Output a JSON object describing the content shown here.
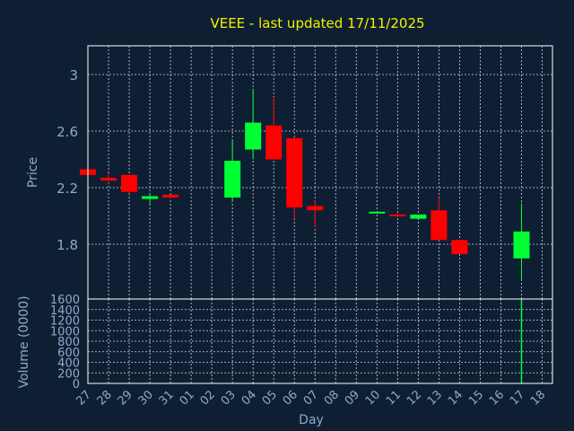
{
  "chart_data": [
    {
      "type": "candlestick",
      "title": "VEEE - last updated 17/11/2025",
      "ylabel": "Price",
      "ylim": [
        1.55,
        3.2
      ],
      "yticks": [
        "3",
        "2.6",
        "2.2",
        "1.8"
      ],
      "grid": true,
      "colors": {
        "up": "#00ff33",
        "down": "#ff0000",
        "grid": "#c8d4e4",
        "frame": "#ffffff"
      },
      "categories": [
        "27",
        "28",
        "29",
        "30",
        "31",
        "01",
        "02",
        "03",
        "04",
        "05",
        "06",
        "07",
        "08",
        "09",
        "10",
        "11",
        "12",
        "13",
        "14",
        "15",
        "16",
        "17",
        "18"
      ],
      "candles": [
        {
          "day": "27",
          "open": 2.33,
          "high": 2.33,
          "low": 2.28,
          "close": 2.29
        },
        {
          "day": "28",
          "open": 2.27,
          "high": 2.3,
          "low": 2.23,
          "close": 2.25
        },
        {
          "day": "29",
          "open": 2.29,
          "high": 2.29,
          "low": 2.16,
          "close": 2.17
        },
        {
          "day": "30",
          "open": 2.12,
          "high": 2.15,
          "low": 2.08,
          "close": 2.14
        },
        {
          "day": "31",
          "open": 2.15,
          "high": 2.15,
          "low": 2.12,
          "close": 2.13
        },
        {
          "day": "03",
          "open": 2.13,
          "high": 2.53,
          "low": 2.1,
          "close": 2.39
        },
        {
          "day": "04",
          "open": 2.47,
          "high": 2.9,
          "low": 2.4,
          "close": 2.66
        },
        {
          "day": "05",
          "open": 2.64,
          "high": 2.84,
          "low": 2.4,
          "close": 2.4
        },
        {
          "day": "06",
          "open": 2.55,
          "high": 2.56,
          "low": 1.98,
          "close": 2.06
        },
        {
          "day": "07",
          "open": 2.07,
          "high": 2.11,
          "low": 1.92,
          "close": 2.04
        },
        {
          "day": "10",
          "open": 2.02,
          "high": 2.03,
          "low": 2.02,
          "close": 2.03
        },
        {
          "day": "11",
          "open": 2.01,
          "high": 2.02,
          "low": 1.99,
          "close": 2.0
        },
        {
          "day": "12",
          "open": 1.98,
          "high": 2.01,
          "low": 1.98,
          "close": 2.01
        },
        {
          "day": "13",
          "open": 2.04,
          "high": 2.13,
          "low": 1.83,
          "close": 1.83
        },
        {
          "day": "14",
          "open": 1.83,
          "high": 1.83,
          "low": 1.73,
          "close": 1.73
        },
        {
          "day": "17",
          "open": 1.7,
          "high": 2.09,
          "low": 1.55,
          "close": 1.89
        }
      ]
    },
    {
      "type": "bar",
      "ylabel": "Volume (0000)",
      "xlabel": "Day",
      "ylim": [
        0,
        1600
      ],
      "yticks": [
        "1600",
        "1400",
        "1200",
        "1000",
        "800",
        "600",
        "400",
        "200",
        "0"
      ],
      "categories": [
        "27",
        "28",
        "29",
        "30",
        "31",
        "01",
        "02",
        "03",
        "04",
        "05",
        "06",
        "07",
        "08",
        "09",
        "10",
        "11",
        "12",
        "13",
        "14",
        "15",
        "16",
        "17",
        "18"
      ],
      "bars": [
        {
          "day": "04",
          "value": 2,
          "color": "#00ff33"
        },
        {
          "day": "06",
          "value": 2,
          "color": "#ff0000"
        },
        {
          "day": "17",
          "value": 1580,
          "color": "#00ff33"
        }
      ]
    }
  ]
}
